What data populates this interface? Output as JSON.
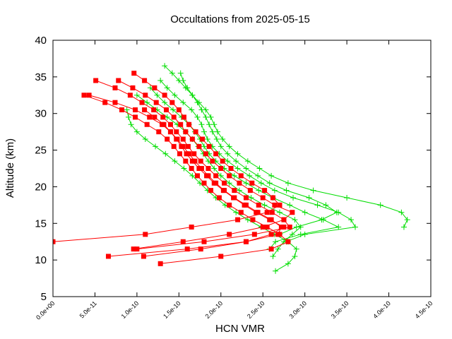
{
  "chart_data": {
    "type": "line",
    "title": "Occultations from 2025-05-15",
    "xlabel": "HCN VMR",
    "ylabel": "Altitude (km)",
    "xlim": [
      0,
      4.5e-10
    ],
    "ylim": [
      5,
      40
    ],
    "x_ticks": [
      0,
      5e-11,
      1e-10,
      1.5e-10,
      2e-10,
      2.5e-10,
      3e-10,
      3.5e-10,
      4e-10,
      4.5e-10
    ],
    "x_tick_labels": [
      "0.0e+00",
      "5.0e-11",
      "1.0e-10",
      "1.5e-10",
      "2.0e-10",
      "2.5e-10",
      "3.0e-10",
      "3.5e-10",
      "4.0e-10",
      "4.5e-10"
    ],
    "y_ticks": [
      5,
      10,
      15,
      20,
      25,
      30,
      35,
      40
    ],
    "y_tick_labels": [
      "5",
      "10",
      "15",
      "20",
      "25",
      "30",
      "35",
      "40"
    ],
    "grid": false,
    "legend": "none",
    "colors": {
      "red_series": "#ff0000",
      "green_series": "#00dd00"
    },
    "series": [
      {
        "color": "#ff0000",
        "marker": "square",
        "x": [
          9.65e-11,
          1.09e-10,
          1.21e-10,
          1.33e-10,
          1.42e-10,
          1.5e-10,
          1.56e-10,
          1.62e-10,
          1.7e-10,
          1.78e-10,
          1.86e-10,
          1.94e-10,
          2.02e-10,
          2.12e-10,
          2.24e-10,
          2.37e-10,
          2.52e-10,
          2.62e-10,
          2.7e-10,
          2.55e-10,
          2.2e-10,
          1.65e-10,
          1.1e-10,
          0.0
        ],
        "y": [
          35.5,
          34.5,
          33.5,
          32.5,
          31.5,
          30.5,
          29.5,
          28.5,
          27.5,
          26.5,
          25.5,
          24.5,
          23.5,
          22.5,
          21.5,
          20.5,
          19.5,
          18.5,
          17.5,
          16.5,
          15.5,
          14.5,
          13.5,
          12.5
        ]
      },
      {
        "color": "#ff0000",
        "marker": "square",
        "x": [
          5.1e-11,
          7.4e-11,
          9.2e-11,
          1.06e-10,
          1.2e-10,
          1.31e-10,
          1.4e-10,
          1.47e-10,
          1.55e-10,
          1.61e-10,
          1.68e-10,
          1.76e-10,
          1.85e-10,
          1.94e-10,
          2.04e-10,
          2.16e-10,
          2.3e-10,
          2.45e-10,
          2.61e-10,
          2.75e-10,
          2.82e-10,
          2.4e-10,
          1.8e-10,
          1e-10
        ],
        "y": [
          34.5,
          33.5,
          32.5,
          31.5,
          30.5,
          29.5,
          28.5,
          27.5,
          26.5,
          25.5,
          24.5,
          23.5,
          22.5,
          21.5,
          20.5,
          19.5,
          18.5,
          17.5,
          16.5,
          15.5,
          14.5,
          13.5,
          12.5,
          11.5
        ]
      },
      {
        "color": "#ff0000",
        "marker": "square",
        "x": [
          7.8e-11,
          9.5e-11,
          1.1e-10,
          1.23e-10,
          1.35e-10,
          1.44e-10,
          1.52e-10,
          1.58e-10,
          1.66e-10,
          1.74e-10,
          1.82e-10,
          1.9e-10,
          2e-10,
          2.1e-10,
          2.22e-10,
          2.35e-10,
          2.5e-10,
          2.64e-10,
          2.85e-10,
          2.75e-10,
          2.5e-10,
          2.1e-10,
          1.55e-10,
          9.6e-11
        ],
        "y": [
          34.5,
          33.5,
          32.5,
          31.5,
          30.5,
          29.5,
          28.5,
          27.5,
          26.5,
          25.5,
          24.5,
          23.5,
          22.5,
          21.5,
          20.5,
          19.5,
          18.5,
          17.5,
          16.5,
          15.5,
          14.5,
          13.5,
          12.5,
          11.5
        ]
      },
      {
        "color": "#ff0000",
        "marker": "square",
        "x": [
          3.7e-11,
          6.2e-11,
          8.2e-11,
          9.8e-11,
          1.12e-10,
          1.26e-10,
          1.36e-10,
          1.44e-10,
          1.51e-10,
          1.58e-10,
          1.65e-10,
          1.72e-10,
          1.8e-10,
          1.88e-10,
          1.98e-10,
          2.1e-10,
          2.24e-10,
          2.38e-10,
          2.55e-10,
          2.7e-10,
          2.8e-10,
          2.6e-10,
          2e-10,
          1.28e-10
        ],
        "y": [
          32.5,
          31.5,
          30.5,
          29.5,
          28.5,
          27.5,
          26.5,
          25.5,
          24.5,
          23.5,
          22.5,
          21.5,
          20.5,
          19.5,
          18.5,
          17.5,
          16.5,
          15.5,
          14.5,
          13.5,
          12.5,
          11.5,
          10.5,
          9.5
        ]
      },
      {
        "color": "#ff0000",
        "marker": "square",
        "x": [
          4.3e-11,
          7.4e-11,
          9.8e-11,
          1.15e-10,
          1.3e-10,
          1.4e-10,
          1.48e-10,
          1.55e-10,
          1.62e-10,
          1.69e-10,
          1.77e-10,
          1.85e-10,
          1.94e-10,
          2.04e-10,
          2.16e-10,
          2.3e-10,
          2.44e-10,
          2.6e-10,
          2.72e-10,
          2.68e-10,
          2.3e-10,
          1.6e-10,
          6.6e-11
        ],
        "y": [
          32.5,
          31.5,
          30.5,
          29.5,
          28.5,
          27.5,
          26.5,
          25.5,
          24.5,
          23.5,
          22.5,
          21.5,
          20.5,
          19.5,
          18.5,
          17.5,
          16.5,
          15.5,
          14.5,
          13.5,
          12.5,
          11.5,
          10.5
        ]
      },
      {
        "color": "#ff0000",
        "marker": "square",
        "x": [
          1.09e-10,
          1.21e-10,
          1.32e-10,
          1.4e-10,
          1.47e-10,
          1.53e-10,
          1.59e-10,
          1.66e-10,
          1.74e-10,
          1.83e-10,
          1.92e-10,
          2.03e-10,
          2.15e-10,
          2.28e-10,
          2.42e-10,
          2.58e-10,
          2.75e-10,
          2.6e-10,
          2.3e-10,
          1.76e-10,
          1.08e-10
        ],
        "y": [
          30.5,
          29.5,
          28.5,
          27.5,
          26.5,
          25.5,
          24.5,
          23.5,
          22.5,
          21.5,
          20.5,
          19.5,
          18.5,
          17.5,
          16.5,
          15.5,
          14.5,
          13.5,
          12.5,
          11.5,
          10.5
        ]
      },
      {
        "color": "#00dd00",
        "marker": "plus",
        "x": [
          1.33e-10,
          1.42e-10,
          1.5e-10,
          1.58e-10,
          1.66e-10,
          1.74e-10,
          1.82e-10,
          1.88e-10,
          1.92e-10,
          1.96e-10,
          2.02e-10,
          2.1e-10,
          2.2e-10,
          2.32e-10,
          2.46e-10,
          2.6e-10,
          2.8e-10,
          3.1e-10,
          3.5e-10,
          3.9e-10,
          4.15e-10,
          4.22e-10,
          4.18e-10
        ],
        "y": [
          36.5,
          35.5,
          34.5,
          33.5,
          32.5,
          31.5,
          30.5,
          29.5,
          28.5,
          27.5,
          26.5,
          25.5,
          24.5,
          23.5,
          22.5,
          21.5,
          20.5,
          19.5,
          18.5,
          17.5,
          16.5,
          15.5,
          14.5
        ]
      },
      {
        "color": "#00dd00",
        "marker": "plus",
        "x": [
          1.52e-10,
          1.55e-10,
          1.6e-10,
          1.66e-10,
          1.72e-10,
          1.77e-10,
          1.82e-10,
          1.86e-10,
          1.9e-10,
          1.95e-10,
          2e-10,
          2.08e-10,
          2.18e-10,
          2.3e-10,
          2.44e-10,
          2.58e-10,
          2.78e-10,
          3.05e-10,
          3.25e-10,
          3.38e-10,
          3.2e-10,
          2.9e-10,
          2.7e-10
        ],
        "y": [
          35.5,
          34.5,
          33.5,
          32.5,
          31.5,
          30.5,
          29.5,
          28.5,
          27.5,
          26.5,
          25.5,
          24.5,
          23.5,
          22.5,
          21.5,
          20.5,
          19.5,
          18.5,
          17.5,
          16.5,
          15.5,
          14.5,
          13.5
        ]
      },
      {
        "color": "#00dd00",
        "marker": "plus",
        "x": [
          1.28e-10,
          1.36e-10,
          1.45e-10,
          1.55e-10,
          1.65e-10,
          1.72e-10,
          1.77e-10,
          1.8e-10,
          1.84e-10,
          1.9e-10,
          1.98e-10,
          2.08e-10,
          2.2e-10,
          2.34e-10,
          2.48e-10,
          2.64e-10,
          2.86e-10,
          3.15e-10,
          3.4e-10,
          3.55e-10,
          3.6e-10,
          3e-10,
          2.78e-10
        ],
        "y": [
          34.5,
          33.5,
          32.5,
          31.5,
          30.5,
          29.5,
          28.5,
          27.5,
          26.5,
          25.5,
          24.5,
          23.5,
          22.5,
          21.5,
          20.5,
          19.5,
          18.5,
          17.5,
          16.5,
          15.5,
          14.5,
          13.5,
          12.5
        ]
      },
      {
        "color": "#00dd00",
        "marker": "plus",
        "x": [
          1.16e-10,
          1.24e-10,
          1.33e-10,
          1.43e-10,
          1.53e-10,
          1.62e-10,
          1.69e-10,
          1.75e-10,
          1.8e-10,
          1.86e-10,
          1.94e-10,
          2.04e-10,
          2.16e-10,
          2.3e-10,
          2.45e-10,
          2.62e-10,
          2.82e-10,
          3e-10,
          3.22e-10,
          3.4e-10,
          2.95e-10,
          2.65e-10,
          2.58e-10
        ],
        "y": [
          33.5,
          32.5,
          31.5,
          30.5,
          29.5,
          28.5,
          27.5,
          26.5,
          25.5,
          24.5,
          23.5,
          22.5,
          21.5,
          20.5,
          19.5,
          18.5,
          17.5,
          16.5,
          15.5,
          14.5,
          13.5,
          12.5,
          11.5
        ]
      },
      {
        "color": "#00dd00",
        "marker": "plus",
        "x": [
          1e-10,
          1.12e-10,
          1.24e-10,
          1.36e-10,
          1.48e-10,
          1.58e-10,
          1.66e-10,
          1.73e-10,
          1.79e-10,
          1.85e-10,
          1.92e-10,
          2e-10,
          2.1e-10,
          2.22e-10,
          2.36e-10,
          2.52e-10,
          2.7e-10,
          2.88e-10,
          2.95e-10,
          2.85e-10,
          2.75e-10,
          2.68e-10,
          2.62e-10
        ],
        "y": [
          32.5,
          31.5,
          30.5,
          29.5,
          28.5,
          27.5,
          26.5,
          25.5,
          24.5,
          23.5,
          22.5,
          21.5,
          20.5,
          19.5,
          18.5,
          17.5,
          16.5,
          15.5,
          14.5,
          13.5,
          12.5,
          11.5,
          10.5
        ]
      },
      {
        "color": "#00dd00",
        "marker": "plus",
        "x": [
          8.8e-11,
          9e-11,
          9.3e-11,
          1e-10,
          1.1e-10,
          1.22e-10,
          1.34e-10,
          1.45e-10,
          1.56e-10,
          1.66e-10,
          1.75e-10,
          1.84e-10,
          1.94e-10,
          2.05e-10,
          2.18e-10,
          2.32e-10,
          2.48e-10,
          2.64e-10,
          2.8e-10,
          2.9e-10,
          2.88e-10,
          2.8e-10,
          2.65e-10
        ],
        "y": [
          30.5,
          29.5,
          28.5,
          27.5,
          26.5,
          25.5,
          24.5,
          23.5,
          22.5,
          21.5,
          20.5,
          19.5,
          18.5,
          17.5,
          16.5,
          15.5,
          14.5,
          13.5,
          12.5,
          11.5,
          10.5,
          9.5,
          8.5
        ]
      }
    ]
  }
}
